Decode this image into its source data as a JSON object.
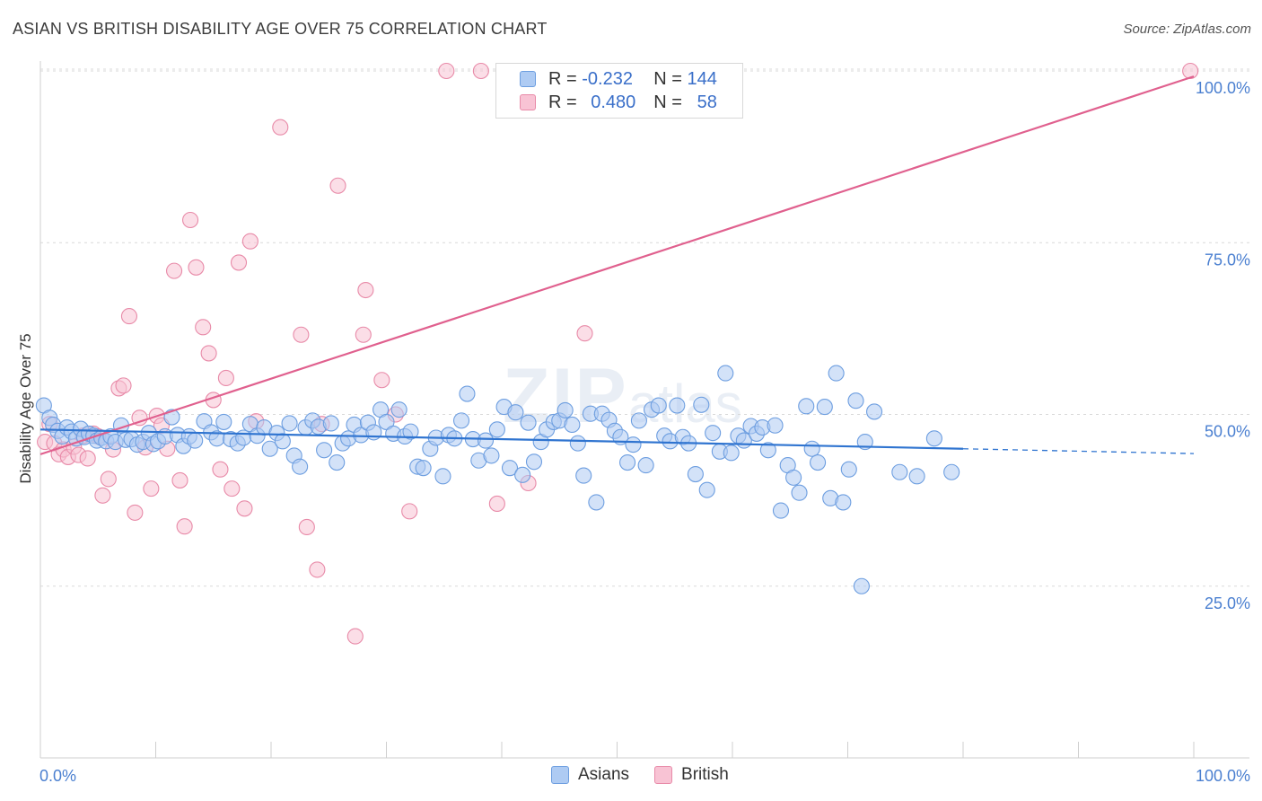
{
  "title": "ASIAN VS BRITISH DISABILITY AGE OVER 75 CORRELATION CHART",
  "source": "Source: ZipAtlas.com",
  "watermark": {
    "main": "ZIP",
    "sub": "atlas"
  },
  "legend_top": [
    {
      "r_label": "R =",
      "r_value": "-0.232",
      "n_label": "N =",
      "n_value": "144",
      "color": "#aecbf3",
      "border": "#6d9ee0"
    },
    {
      "r_label": "R =",
      "r_value": "0.480",
      "n_label": "N =",
      "n_value": "58",
      "color": "#f8c3d4",
      "border": "#e88aa8"
    }
  ],
  "legend_bottom": [
    {
      "label": "Asians",
      "color": "#aecbf3",
      "border": "#6d9ee0"
    },
    {
      "label": "British",
      "color": "#f8c3d4",
      "border": "#e88aa8"
    }
  ],
  "chart_data": {
    "type": "scatter",
    "title": "ASIAN VS BRITISH DISABILITY AGE OVER 75 CORRELATION CHART",
    "xlabel": "",
    "ylabel": "Disability Age Over 75",
    "xlim": [
      0,
      100
    ],
    "ylim": [
      0,
      100
    ],
    "x_tick_labels": [
      "0.0%",
      "100.0%"
    ],
    "y_ticks": [
      25,
      50,
      75,
      100
    ],
    "y_tick_labels": [
      "25.0%",
      "50.0%",
      "75.0%",
      "100.0%"
    ],
    "series": [
      {
        "name": "Asians",
        "color": "#aecbf3",
        "stroke": "#6d9ee0",
        "trend": {
          "x0": 0,
          "y0": 47.8,
          "x1": 80,
          "y1": 45.0,
          "dash_to_x": 100,
          "dash_to_y": 44.3,
          "color": "#2f74d0"
        },
        "points": [
          [
            0.3,
            51.3
          ],
          [
            0.8,
            49.5
          ],
          [
            1.1,
            48.5
          ],
          [
            1.5,
            47.6
          ],
          [
            1.9,
            46.8
          ],
          [
            2.3,
            48.1
          ],
          [
            2.7,
            47.5
          ],
          [
            3.1,
            46.5
          ],
          [
            3.5,
            47.9
          ],
          [
            3.8,
            46.7
          ],
          [
            4.2,
            47.2
          ],
          [
            4.6,
            46.9
          ],
          [
            4.9,
            46.2
          ],
          [
            5.3,
            46.6
          ],
          [
            5.7,
            46.1
          ],
          [
            6.1,
            46.8
          ],
          [
            6.5,
            46.0
          ],
          [
            7.0,
            48.4
          ],
          [
            7.4,
            46.3
          ],
          [
            7.9,
            46.4
          ],
          [
            8.4,
            45.6
          ],
          [
            8.9,
            46.0
          ],
          [
            9.4,
            47.3
          ],
          [
            9.8,
            45.7
          ],
          [
            10.2,
            46.1
          ],
          [
            10.8,
            46.8
          ],
          [
            11.4,
            49.6
          ],
          [
            11.9,
            47.0
          ],
          [
            12.4,
            45.4
          ],
          [
            12.9,
            46.8
          ],
          [
            13.4,
            46.2
          ],
          [
            14.2,
            49.0
          ],
          [
            14.8,
            47.4
          ],
          [
            15.3,
            46.5
          ],
          [
            15.9,
            48.9
          ],
          [
            16.5,
            46.4
          ],
          [
            17.1,
            45.8
          ],
          [
            17.6,
            46.6
          ],
          [
            18.2,
            48.6
          ],
          [
            18.8,
            46.9
          ],
          [
            19.4,
            48.1
          ],
          [
            19.9,
            45.0
          ],
          [
            20.5,
            47.3
          ],
          [
            21.0,
            46.1
          ],
          [
            21.6,
            48.7
          ],
          [
            22.0,
            44.0
          ],
          [
            22.5,
            42.4
          ],
          [
            23.0,
            48.1
          ],
          [
            23.6,
            49.1
          ],
          [
            24.1,
            48.2
          ],
          [
            24.6,
            44.8
          ],
          [
            25.2,
            48.7
          ],
          [
            25.7,
            43.0
          ],
          [
            26.2,
            45.8
          ],
          [
            26.7,
            46.5
          ],
          [
            27.2,
            48.5
          ],
          [
            27.8,
            47.0
          ],
          [
            28.4,
            48.8
          ],
          [
            28.9,
            47.4
          ],
          [
            29.5,
            50.7
          ],
          [
            30.0,
            48.9
          ],
          [
            30.6,
            47.2
          ],
          [
            31.1,
            50.7
          ],
          [
            31.6,
            46.8
          ],
          [
            32.1,
            47.5
          ],
          [
            32.7,
            42.4
          ],
          [
            33.2,
            42.2
          ],
          [
            33.8,
            45.0
          ],
          [
            34.3,
            46.6
          ],
          [
            34.9,
            41.0
          ],
          [
            35.4,
            47.0
          ],
          [
            35.9,
            46.5
          ],
          [
            36.5,
            49.1
          ],
          [
            37.0,
            53.0
          ],
          [
            37.5,
            46.4
          ],
          [
            38.0,
            43.3
          ],
          [
            38.6,
            46.2
          ],
          [
            39.1,
            44.0
          ],
          [
            39.6,
            47.8
          ],
          [
            40.2,
            51.1
          ],
          [
            40.7,
            42.2
          ],
          [
            41.2,
            50.3
          ],
          [
            41.8,
            41.2
          ],
          [
            42.3,
            48.8
          ],
          [
            42.8,
            43.1
          ],
          [
            43.4,
            46.0
          ],
          [
            43.9,
            47.8
          ],
          [
            44.5,
            48.9
          ],
          [
            45.0,
            49.1
          ],
          [
            45.5,
            50.6
          ],
          [
            46.1,
            48.5
          ],
          [
            46.6,
            45.8
          ],
          [
            47.1,
            41.1
          ],
          [
            47.7,
            50.1
          ],
          [
            48.2,
            37.2
          ],
          [
            48.7,
            50.1
          ],
          [
            49.3,
            49.2
          ],
          [
            49.8,
            47.6
          ],
          [
            50.3,
            46.7
          ],
          [
            50.9,
            43.0
          ],
          [
            51.4,
            45.6
          ],
          [
            51.9,
            49.1
          ],
          [
            52.5,
            42.6
          ],
          [
            53.0,
            50.7
          ],
          [
            53.6,
            51.3
          ],
          [
            54.1,
            46.9
          ],
          [
            54.6,
            46.1
          ],
          [
            55.2,
            51.3
          ],
          [
            55.7,
            46.7
          ],
          [
            56.2,
            45.8
          ],
          [
            56.8,
            41.3
          ],
          [
            57.3,
            51.4
          ],
          [
            57.8,
            39.0
          ],
          [
            58.3,
            47.3
          ],
          [
            58.9,
            44.6
          ],
          [
            59.4,
            56.0
          ],
          [
            59.9,
            44.4
          ],
          [
            60.5,
            46.9
          ],
          [
            61.0,
            46.2
          ],
          [
            61.6,
            48.3
          ],
          [
            62.1,
            47.2
          ],
          [
            62.6,
            48.1
          ],
          [
            63.1,
            44.8
          ],
          [
            63.7,
            48.4
          ],
          [
            64.2,
            36.0
          ],
          [
            64.8,
            42.6
          ],
          [
            65.3,
            40.8
          ],
          [
            65.8,
            38.6
          ],
          [
            66.4,
            51.2
          ],
          [
            66.9,
            45.0
          ],
          [
            67.4,
            43.0
          ],
          [
            68.0,
            51.1
          ],
          [
            68.5,
            37.8
          ],
          [
            69.0,
            56.0
          ],
          [
            69.6,
            37.2
          ],
          [
            70.1,
            42.0
          ],
          [
            70.7,
            52.0
          ],
          [
            71.2,
            25.0
          ],
          [
            71.5,
            46.0
          ],
          [
            72.3,
            50.4
          ],
          [
            74.5,
            41.6
          ],
          [
            76.0,
            41.0
          ],
          [
            77.5,
            46.5
          ],
          [
            79.0,
            41.6
          ]
        ]
      },
      {
        "name": "British",
        "color": "#f8c3d4",
        "stroke": "#e88aa8",
        "trend": {
          "x0": 0,
          "y0": 44.2,
          "x1": 100,
          "y1": 99.2,
          "color": "#e0608e"
        },
        "points": [
          [
            0.4,
            46.0
          ],
          [
            0.8,
            48.6
          ],
          [
            1.2,
            45.8
          ],
          [
            1.6,
            44.2
          ],
          [
            2.0,
            44.9
          ],
          [
            2.4,
            43.8
          ],
          [
            2.9,
            45.3
          ],
          [
            3.3,
            44.1
          ],
          [
            3.7,
            46.9
          ],
          [
            4.1,
            43.6
          ],
          [
            4.6,
            47.2
          ],
          [
            5.0,
            46.8
          ],
          [
            5.4,
            38.2
          ],
          [
            5.9,
            40.6
          ],
          [
            6.3,
            44.9
          ],
          [
            6.8,
            53.8
          ],
          [
            7.2,
            54.2
          ],
          [
            7.7,
            64.3
          ],
          [
            8.2,
            35.7
          ],
          [
            8.6,
            49.5
          ],
          [
            9.1,
            45.2
          ],
          [
            9.6,
            39.2
          ],
          [
            10.1,
            49.8
          ],
          [
            10.5,
            48.4
          ],
          [
            11.0,
            45.0
          ],
          [
            11.6,
            70.9
          ],
          [
            12.1,
            40.4
          ],
          [
            12.5,
            33.7
          ],
          [
            13.0,
            78.3
          ],
          [
            13.5,
            71.4
          ],
          [
            14.1,
            62.7
          ],
          [
            14.6,
            58.9
          ],
          [
            15.0,
            52.1
          ],
          [
            15.6,
            42.0
          ],
          [
            16.1,
            55.3
          ],
          [
            16.6,
            39.2
          ],
          [
            17.2,
            72.1
          ],
          [
            17.7,
            36.3
          ],
          [
            18.2,
            75.2
          ],
          [
            18.7,
            49.0
          ],
          [
            20.8,
            91.8
          ],
          [
            22.6,
            61.6
          ],
          [
            23.1,
            33.6
          ],
          [
            24.0,
            27.4
          ],
          [
            24.4,
            48.6
          ],
          [
            25.8,
            83.3
          ],
          [
            27.3,
            17.7
          ],
          [
            28.0,
            61.6
          ],
          [
            28.2,
            68.1
          ],
          [
            29.6,
            55.0
          ],
          [
            30.8,
            50.0
          ],
          [
            32.0,
            35.9
          ],
          [
            35.2,
            100.0
          ],
          [
            38.2,
            100.0
          ],
          [
            39.6,
            37.0
          ],
          [
            42.3,
            40.0
          ],
          [
            47.2,
            61.8
          ],
          [
            99.7,
            100.0
          ]
        ]
      }
    ]
  }
}
